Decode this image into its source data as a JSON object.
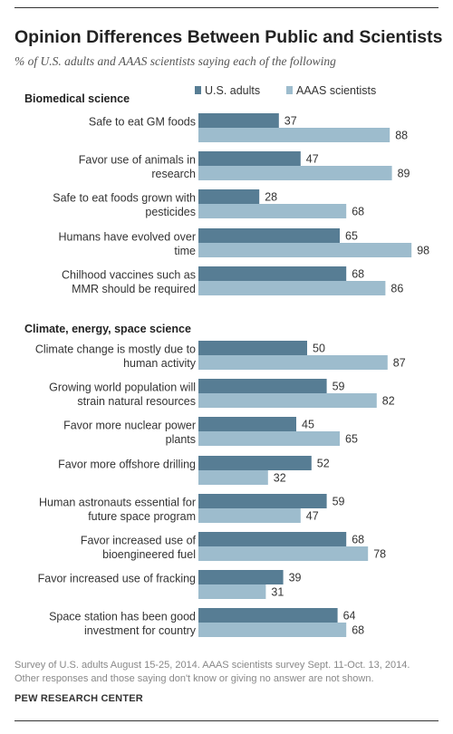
{
  "header": {
    "title": "Opinion Differences Between Public and Scientists",
    "subtitle": "% of U.S. adults and AAAS scientists saying each of the following"
  },
  "chart_data": {
    "type": "bar",
    "orientation": "horizontal",
    "series": [
      {
        "name": "U.S. adults",
        "color": "#577d94"
      },
      {
        "name": "AAAS scientists",
        "color": "#9dbccd"
      }
    ],
    "legend_position": "top",
    "groups": [
      {
        "name": "Biomedical science",
        "items": [
          {
            "label": [
              "Safe to eat GM foods"
            ],
            "values": [
              37,
              88
            ]
          },
          {
            "label": [
              "Favor use of animals in",
              "research"
            ],
            "values": [
              47,
              89
            ]
          },
          {
            "label": [
              "Safe to eat foods grown with",
              "pesticides"
            ],
            "values": [
              28,
              68
            ]
          },
          {
            "label": [
              "Humans have evolved over",
              "time"
            ],
            "values": [
              65,
              98
            ]
          },
          {
            "label": [
              "Chilhood vaccines such as",
              "MMR should be required"
            ],
            "values": [
              68,
              86
            ]
          }
        ]
      },
      {
        "name": "Climate, energy, space science",
        "items": [
          {
            "label": [
              "Climate change is mostly due to",
              "human activity"
            ],
            "values": [
              50,
              87
            ]
          },
          {
            "label": [
              "Growing world population will",
              "strain natural resources"
            ],
            "values": [
              59,
              82
            ]
          },
          {
            "label": [
              "Favor more nuclear power",
              "plants"
            ],
            "values": [
              45,
              65
            ]
          },
          {
            "label": [
              "Favor more offshore drilling"
            ],
            "values": [
              52,
              32
            ]
          },
          {
            "label": [
              "Human astronauts essential for",
              "future space program"
            ],
            "values": [
              59,
              47
            ]
          },
          {
            "label": [
              "Favor increased use of",
              "bioengineered fuel"
            ],
            "values": [
              68,
              78
            ]
          },
          {
            "label": [
              "Favor increased use of fracking"
            ],
            "values": [
              39,
              31
            ]
          },
          {
            "label": [
              "Space station has been good",
              "investment for country"
            ],
            "values": [
              64,
              68
            ]
          }
        ]
      }
    ],
    "xlim": [
      0,
      100
    ],
    "grid": false
  },
  "footer": {
    "note_line1": "Survey of U.S. adults August 15-25, 2014. AAAS scientists survey Sept. 11-Oct. 13, 2014.",
    "note_line2": "Other responses and those saying don't know or giving no answer are not shown.",
    "source": "PEW RESEARCH CENTER"
  }
}
